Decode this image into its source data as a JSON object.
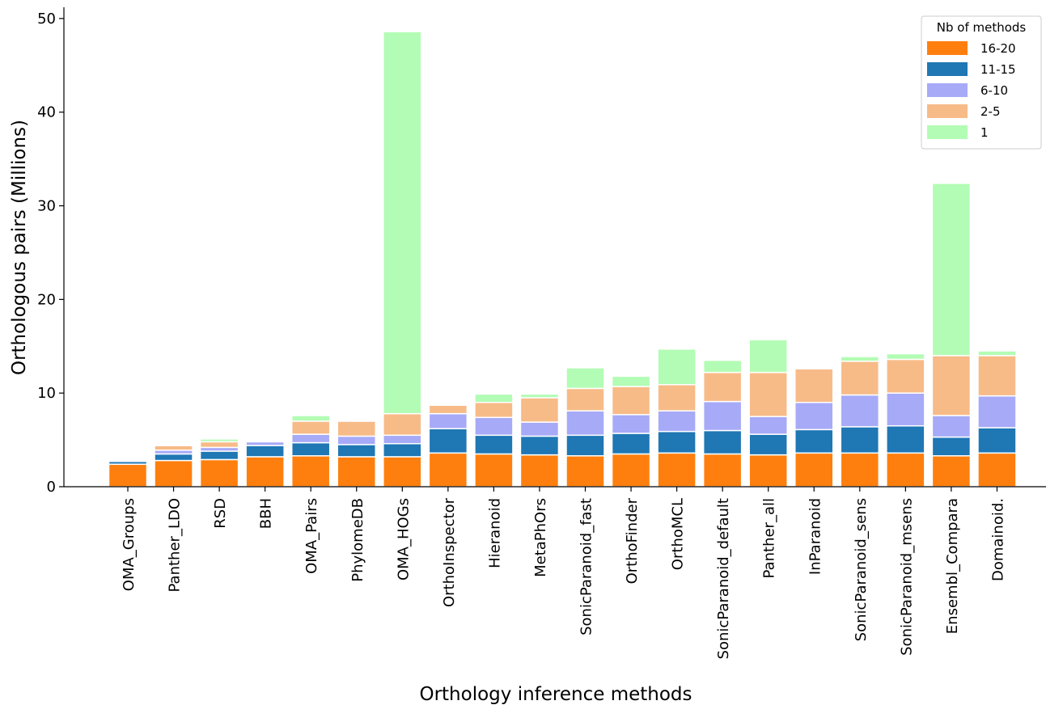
{
  "chart_data": {
    "type": "bar",
    "stacked": true,
    "xlabel": "Orthology inference methods",
    "ylabel": "Orthologous pairs (Millions)",
    "ylim": [
      0,
      51.2
    ],
    "yticks": [
      0,
      10,
      20,
      30,
      40,
      50
    ],
    "grid": false,
    "legend_position": "top-right",
    "legend_title": "Nb of methods",
    "categories": [
      "OMA_Groups",
      "Panther_LDO",
      "RSD",
      "BBH",
      "OMA_Pairs",
      "PhylomeDB",
      "OMA_HOGs",
      "OrthoInspector",
      "Hieranoid",
      "MetaPhOrs",
      "SonicParanoid_fast",
      "OrthoFinder",
      "OrthoMCL",
      "SonicParanoid_default",
      "Panther_all",
      "InParanoid",
      "SonicParanoid_sens",
      "SonicParanoid_msens",
      "Ensembl_Compara",
      "Domainoid."
    ],
    "series": [
      {
        "name": "16-20",
        "color": "#ff7f0e",
        "values": [
          2.4,
          2.8,
          2.9,
          3.2,
          3.3,
          3.2,
          3.2,
          3.6,
          3.5,
          3.4,
          3.3,
          3.5,
          3.6,
          3.5,
          3.4,
          3.6,
          3.6,
          3.6,
          3.3,
          3.6
        ]
      },
      {
        "name": "11-15",
        "color": "#1f77b4",
        "values": [
          0.3,
          0.7,
          0.9,
          1.2,
          1.4,
          1.3,
          1.4,
          2.6,
          2.0,
          2.0,
          2.2,
          2.2,
          2.3,
          2.5,
          2.2,
          2.5,
          2.8,
          2.9,
          2.0,
          2.7
        ]
      },
      {
        "name": "6-10",
        "color": "#a7aaf7",
        "values": [
          0.05,
          0.4,
          0.4,
          0.4,
          0.9,
          0.9,
          0.9,
          1.6,
          1.9,
          1.5,
          2.6,
          2.0,
          2.2,
          3.1,
          1.9,
          2.9,
          3.4,
          3.5,
          2.3,
          3.4
        ]
      },
      {
        "name": "2-5",
        "color": "#f7bb88",
        "values": [
          0.05,
          0.5,
          0.6,
          0.05,
          1.4,
          1.6,
          2.3,
          0.9,
          1.6,
          2.6,
          2.4,
          3.0,
          2.8,
          3.1,
          4.7,
          3.6,
          3.6,
          3.6,
          6.4,
          4.3
        ]
      },
      {
        "name": "1",
        "color": "#b3fcb5",
        "values": [
          0.0,
          0.1,
          0.3,
          0.05,
          0.6,
          0.1,
          40.8,
          0.0,
          0.9,
          0.4,
          2.2,
          1.1,
          3.8,
          1.3,
          3.5,
          0.1,
          0.5,
          0.6,
          18.4,
          0.5
        ]
      }
    ]
  }
}
